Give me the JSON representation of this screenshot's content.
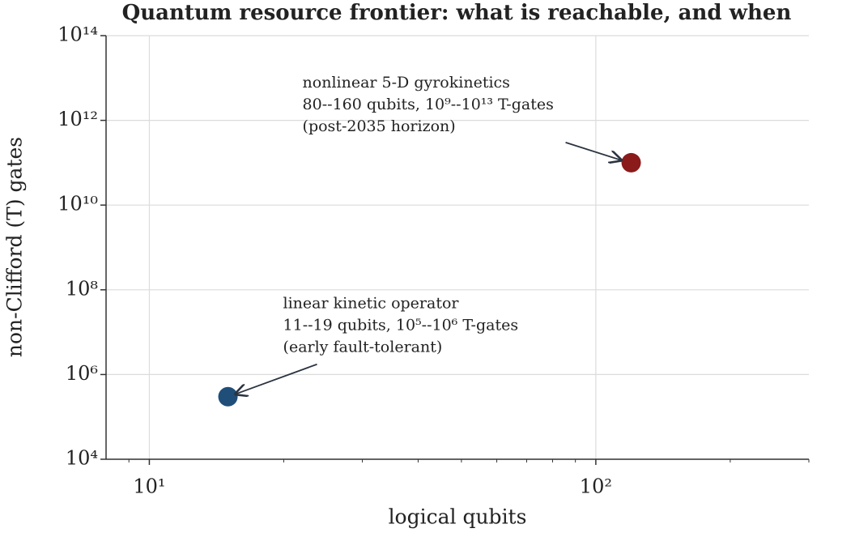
{
  "chart_data": {
    "type": "scatter",
    "title": "Quantum resource frontier: what is reachable, and when",
    "x_label": "logical qubits",
    "y_label": "non-Clifford (T) gates",
    "x": [
      15,
      120
    ],
    "values": [
      300000,
      100000000000
    ],
    "colors": [
      "#1f4e79",
      "#8b1a1a"
    ],
    "x_log": true,
    "y_log": true,
    "xlim": [
      8,
      300
    ],
    "ylim": [
      10000,
      100000000000000
    ],
    "xticks": [
      {
        "value": 10,
        "label": "10¹"
      },
      {
        "value": 100,
        "label": "10²"
      }
    ],
    "xminorticks": [
      9,
      20,
      30,
      40,
      50,
      60,
      70,
      80,
      90,
      200,
      300
    ],
    "yticks": [
      {
        "value": 10000,
        "label": "10⁴"
      },
      {
        "value": 1000000,
        "label": "10⁶"
      },
      {
        "value": 100000000,
        "label": "10⁸"
      },
      {
        "value": 10000000000,
        "label": "10¹⁰"
      },
      {
        "value": 1000000000000,
        "label": "10¹²"
      },
      {
        "value": 100000000000000,
        "label": "10¹⁴"
      }
    ],
    "grid": true,
    "annotations": [
      {
        "point": 0,
        "lines": [
          "linear kinetic operator",
          "11--19 qubits, 10⁵--10⁶ T-gates",
          "(early fault-tolerant)"
        ]
      },
      {
        "point": 1,
        "lines": [
          "nonlinear 5-D gyrokinetics",
          "80--160 qubits, 10⁹--10¹³ T-gates",
          "(post-2035 horizon)"
        ]
      }
    ]
  }
}
